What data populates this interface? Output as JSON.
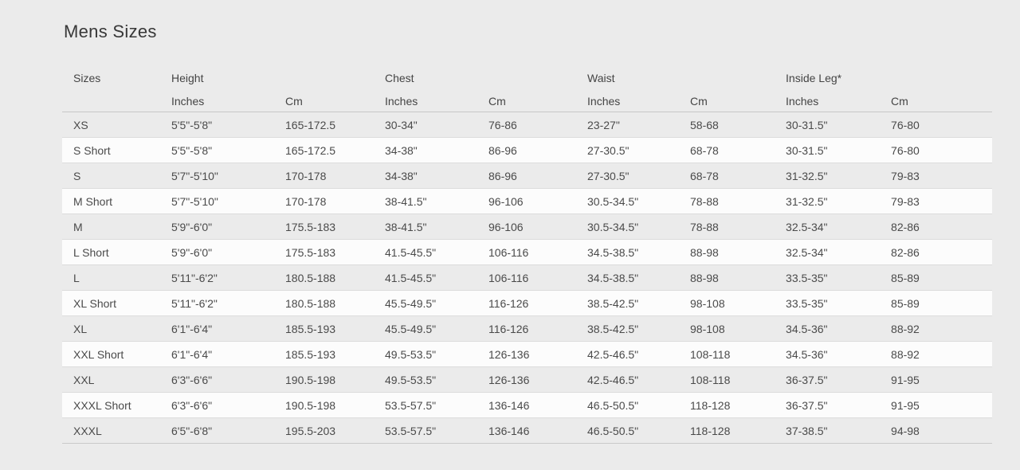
{
  "page": {
    "title": "Mens Sizes",
    "background_color": "#ebebeb",
    "row_alt_color": "#fcfcfc",
    "text_color": "#4a4a4a"
  },
  "table": {
    "column_groups": [
      {
        "label": "Sizes",
        "span": 1
      },
      {
        "label": "Height",
        "span": 2
      },
      {
        "label": "Chest",
        "span": 2
      },
      {
        "label": "Waist",
        "span": 2
      },
      {
        "label": "Inside Leg*",
        "span": 2
      }
    ],
    "sub_headers": [
      "Inches",
      "Cm",
      "Inches",
      "Cm",
      "Inches",
      "Cm",
      "Inches",
      "Cm"
    ],
    "column_keys": [
      "size",
      "height-inches",
      "height-cm",
      "chest-inches",
      "chest-cm",
      "waist-inches",
      "waist-cm",
      "insideleg-inches",
      "insideleg-cm"
    ],
    "rows": [
      [
        "XS",
        "5'5\"-5'8\"",
        "165-172.5",
        "30-34\"",
        "76-86",
        "23-27\"",
        "58-68",
        "30-31.5\"",
        "76-80"
      ],
      [
        "S Short",
        "5'5\"-5'8\"",
        "165-172.5",
        "34-38\"",
        "86-96",
        "27-30.5\"",
        "68-78",
        "30-31.5\"",
        "76-80"
      ],
      [
        "S",
        "5'7\"-5'10\"",
        "170-178",
        "34-38\"",
        "86-96",
        "27-30.5\"",
        "68-78",
        "31-32.5\"",
        "79-83"
      ],
      [
        "M Short",
        "5'7\"-5'10\"",
        "170-178",
        "38-41.5\"",
        "96-106",
        "30.5-34.5\"",
        "78-88",
        "31-32.5\"",
        "79-83"
      ],
      [
        "M",
        "5'9\"-6'0\"",
        "175.5-183",
        "38-41.5\"",
        "96-106",
        "30.5-34.5\"",
        "78-88",
        "32.5-34\"",
        "82-86"
      ],
      [
        "L Short",
        "5'9\"-6'0\"",
        "175.5-183",
        "41.5-45.5\"",
        "106-116",
        "34.5-38.5\"",
        "88-98",
        "32.5-34\"",
        "82-86"
      ],
      [
        "L",
        "5'11\"-6'2\"",
        "180.5-188",
        "41.5-45.5\"",
        "106-116",
        "34.5-38.5\"",
        "88-98",
        "33.5-35\"",
        "85-89"
      ],
      [
        "XL Short",
        "5'11\"-6'2\"",
        "180.5-188",
        "45.5-49.5\"",
        "116-126",
        "38.5-42.5\"",
        "98-108",
        "33.5-35\"",
        "85-89"
      ],
      [
        "XL",
        "6'1\"-6'4\"",
        "185.5-193",
        "45.5-49.5\"",
        "116-126",
        "38.5-42.5\"",
        "98-108",
        "34.5-36\"",
        "88-92"
      ],
      [
        "XXL Short",
        "6'1\"-6'4\"",
        "185.5-193",
        "49.5-53.5\"",
        "126-136",
        "42.5-46.5\"",
        "108-118",
        "34.5-36\"",
        "88-92"
      ],
      [
        "XXL",
        "6'3\"-6'6\"",
        "190.5-198",
        "49.5-53.5\"",
        "126-136",
        "42.5-46.5\"",
        "108-118",
        "36-37.5\"",
        "91-95"
      ],
      [
        "XXXL Short",
        "6'3\"-6'6\"",
        "190.5-198",
        "53.5-57.5\"",
        "136-146",
        "46.5-50.5\"",
        "118-128",
        "36-37.5\"",
        "91-95"
      ],
      [
        "XXXL",
        "6'5\"-6'8\"",
        "195.5-203",
        "53.5-57.5\"",
        "136-146",
        "46.5-50.5\"",
        "118-128",
        "37-38.5\"",
        "94-98"
      ]
    ]
  }
}
